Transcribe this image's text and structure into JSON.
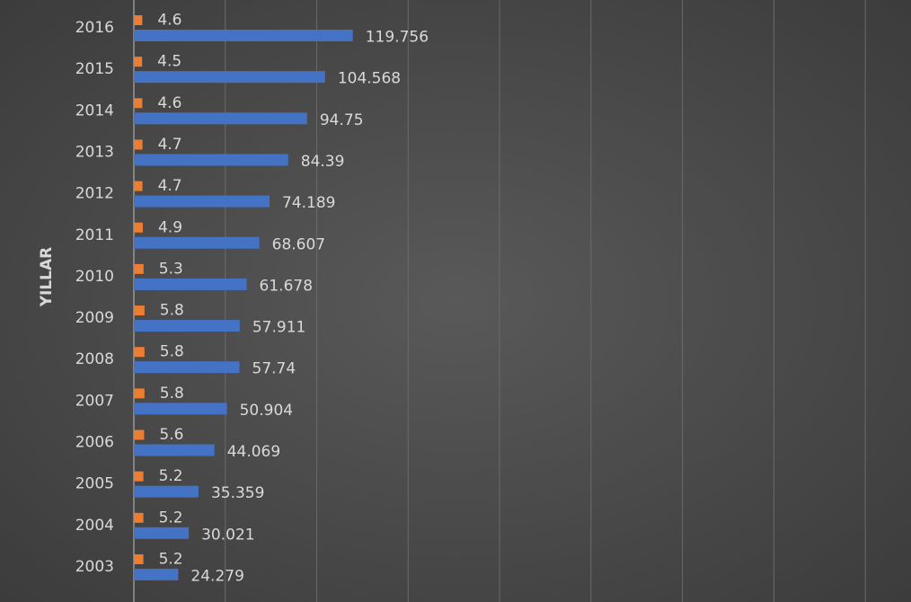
{
  "chart_data": {
    "type": "hbar",
    "y_label": "YILLAR",
    "categories": [
      "2016",
      "2015",
      "2014",
      "2013",
      "2012",
      "2011",
      "2010",
      "2009",
      "2008",
      "2007",
      "2006",
      "2005",
      "2004",
      "2003"
    ],
    "series": [
      {
        "color": "#ed7d31",
        "values": [
          4.6,
          4.5,
          4.6,
          4.7,
          4.7,
          4.9,
          5.3,
          5.8,
          5.8,
          5.8,
          5.6,
          5.2,
          5.2,
          5.2
        ]
      },
      {
        "color": "#4472c4",
        "values": [
          119.756,
          104.568,
          94.75,
          84.39,
          74.189,
          68.607,
          61.678,
          57.911,
          57.74,
          50.904,
          44.069,
          35.359,
          30.021,
          24.279
        ]
      }
    ],
    "xlim": [
      0,
      425
    ],
    "xticks": [
      0,
      50,
      100,
      150,
      200,
      250,
      300,
      350,
      400
    ],
    "grid": true
  }
}
